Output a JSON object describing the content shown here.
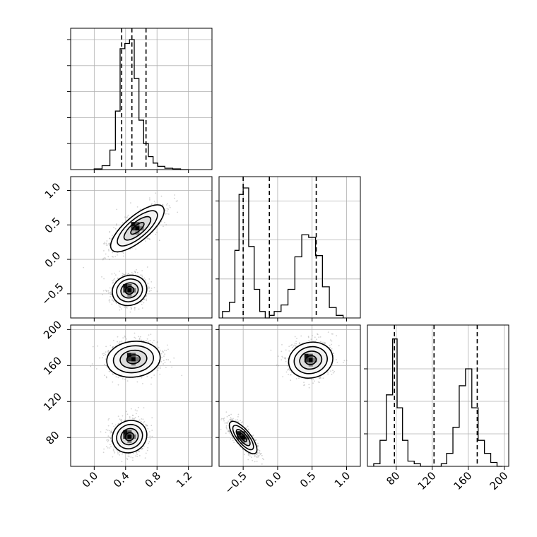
{
  "chart_data": {
    "type": "corner",
    "title": "",
    "grid": true,
    "colors": {
      "line": "#000000",
      "grid": "#b0b0b0",
      "scatter": "#7f7f7f",
      "fill_light": "#dedede",
      "fill_mid": "#9a9a9a",
      "fill_dark": "#111111"
    },
    "params": [
      {
        "name": "p0",
        "label": "",
        "range": [
          -0.3,
          1.5
        ],
        "ticks": [
          0.0,
          0.4,
          0.8,
          1.2
        ],
        "tick_labels": [
          "0.0",
          "0.4",
          "0.8",
          "1.2"
        ],
        "quantiles": [
          0.35,
          0.48,
          0.66
        ]
      },
      {
        "name": "p1",
        "label": "",
        "range": [
          -0.85,
          1.2
        ],
        "ticks": [
          -0.5,
          0.0,
          0.5,
          1.0
        ],
        "tick_labels": [
          "−0.5",
          "0.0",
          "0.5",
          "1.0"
        ],
        "quantiles": [
          -0.5,
          -0.12,
          0.56
        ]
      },
      {
        "name": "p2",
        "label": "",
        "range": [
          48,
          205
        ],
        "ticks": [
          80,
          120,
          160,
          200
        ],
        "tick_labels": [
          "80",
          "120",
          "160",
          "200"
        ],
        "quantiles": [
          78,
          122,
          170
        ]
      }
    ],
    "histograms": [
      {
        "param": "p0",
        "bin_edges": [
          0.0,
          0.1,
          0.2,
          0.27,
          0.33,
          0.39,
          0.45,
          0.51,
          0.57,
          0.63,
          0.69,
          0.75,
          0.81,
          0.9,
          1.0,
          1.1,
          1.2
        ],
        "counts": [
          0.005,
          0.03,
          0.15,
          0.45,
          0.93,
          0.97,
          1.0,
          0.7,
          0.38,
          0.2,
          0.1,
          0.05,
          0.025,
          0.01,
          0.005,
          0.0
        ],
        "yticks": [
          0.2,
          0.4,
          0.6,
          0.8,
          1.0
        ]
      },
      {
        "param": "p1",
        "bin_edges": [
          -0.8,
          -0.7,
          -0.62,
          -0.56,
          -0.5,
          -0.42,
          -0.34,
          -0.26,
          -0.18,
          -0.12,
          -0.05,
          0.05,
          0.15,
          0.25,
          0.35,
          0.45,
          0.55,
          0.65,
          0.75,
          0.85,
          0.95
        ],
        "counts": [
          0.05,
          0.12,
          0.52,
          0.95,
          1.0,
          0.55,
          0.22,
          0.05,
          0.0,
          0.02,
          0.05,
          0.1,
          0.22,
          0.47,
          0.64,
          0.62,
          0.48,
          0.24,
          0.08,
          0.02
        ],
        "yticks": [
          0.3,
          0.6,
          0.9
        ]
      },
      {
        "param": "p2",
        "bin_edges": [
          55,
          62,
          69,
          76,
          81,
          87,
          93,
          100,
          107,
          130,
          136,
          143,
          150,
          157,
          164,
          171,
          178,
          185,
          192,
          198
        ],
        "counts": [
          0.02,
          0.2,
          0.55,
          0.98,
          0.45,
          0.2,
          0.04,
          0.02,
          0.0,
          0.02,
          0.1,
          0.3,
          0.62,
          0.75,
          0.45,
          0.2,
          0.1,
          0.03,
          0.0
        ],
        "yticks": [
          0.25,
          0.5,
          0.75
        ]
      }
    ],
    "pairs": [
      {
        "x": "p0",
        "y": "p1",
        "modes": [
          {
            "cx": 0.55,
            "cy": 0.45,
            "sx": 0.17,
            "sy": 0.17,
            "rho": 0.75,
            "weight": 0.5
          },
          {
            "cx": 0.45,
            "cy": -0.45,
            "sx": 0.11,
            "sy": 0.11,
            "rho": 0.1,
            "weight": 0.5
          }
        ]
      },
      {
        "x": "p0",
        "y": "p2",
        "modes": [
          {
            "cx": 0.5,
            "cy": 167,
            "sx": 0.17,
            "sy": 10,
            "rho": 0.1,
            "weight": 0.5
          },
          {
            "cx": 0.45,
            "cy": 81,
            "sx": 0.11,
            "sy": 9,
            "rho": 0.1,
            "weight": 0.5
          }
        ]
      },
      {
        "x": "p1",
        "y": "p2",
        "modes": [
          {
            "cx": 0.48,
            "cy": 166,
            "sx": 0.16,
            "sy": 10,
            "rho": 0.1,
            "weight": 0.5
          },
          {
            "cx": -0.5,
            "cy": 80,
            "sx": 0.1,
            "sy": 9,
            "rho": -0.75,
            "weight": 0.5
          }
        ]
      }
    ],
    "contour_levels_sigma": [
      0.5,
      1.0,
      1.5,
      2.0
    ]
  }
}
